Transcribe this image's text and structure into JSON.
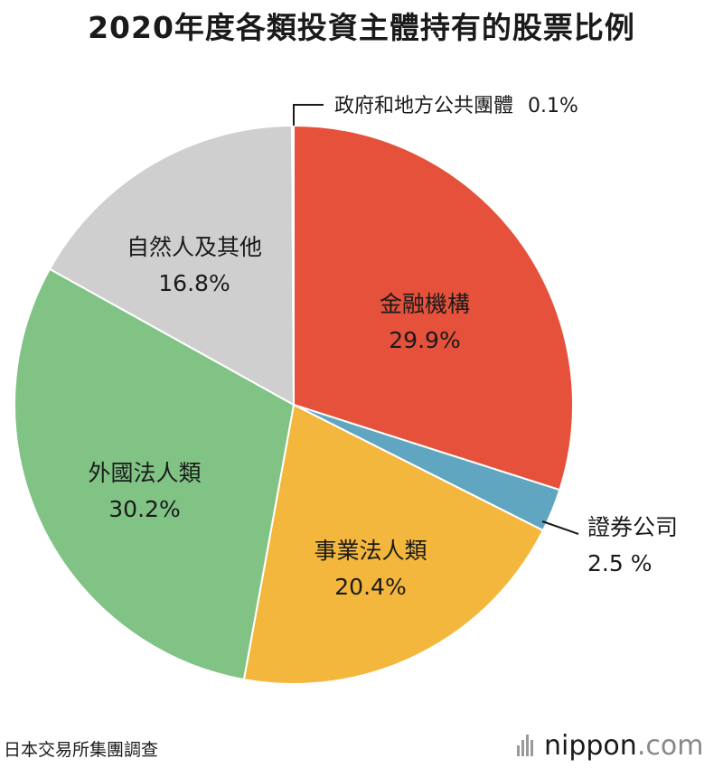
{
  "chart_data": {
    "type": "pie",
    "title": "2020年度各類投資主體持有的股票比例",
    "slices": [
      {
        "label": "金融機構",
        "value": 29.9,
        "value_label": "29.9%",
        "color": "#e5513a"
      },
      {
        "label": "證券公司",
        "value": 2.5,
        "value_label": "2.5 %",
        "color": "#61a6c0"
      },
      {
        "label": "事業法人類",
        "value": 20.4,
        "value_label": "20.4%",
        "color": "#f4b73d"
      },
      {
        "label": "外國法人類",
        "value": 30.2,
        "value_label": "30.2%",
        "color": "#80c385"
      },
      {
        "label": "自然人及其他",
        "value": 16.8,
        "value_label": "16.8%",
        "color": "#cfcfcf"
      },
      {
        "label": "政府和地方公共團體",
        "value": 0.1,
        "value_label": "0.1%",
        "color": "#f0f0f0"
      }
    ]
  },
  "source": "日本交易所集團調查",
  "brand": {
    "name": "nippon",
    "suffix": ".com"
  }
}
